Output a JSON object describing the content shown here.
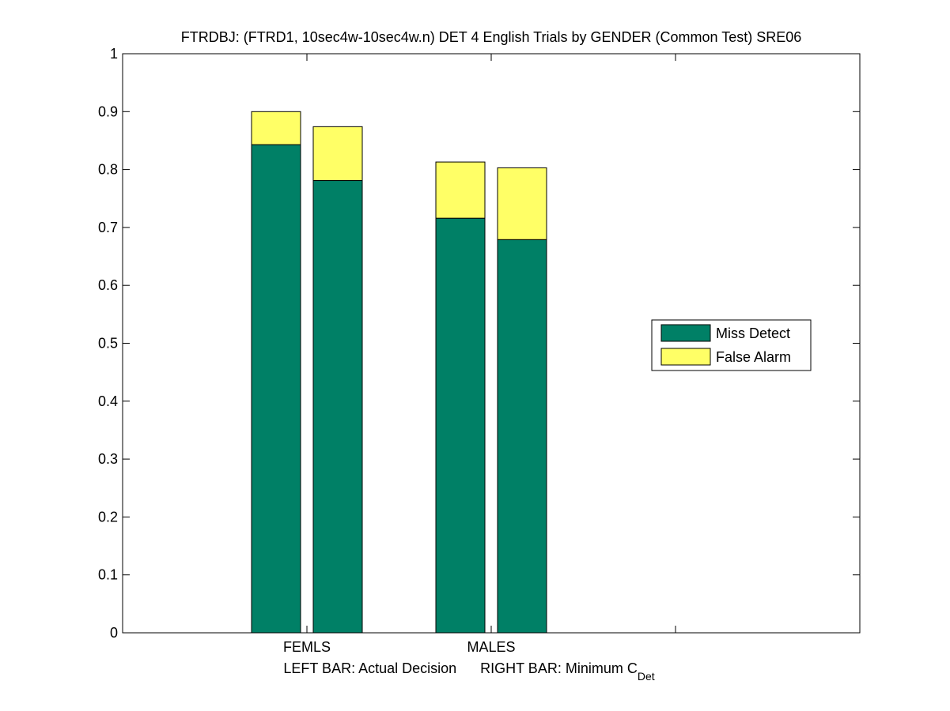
{
  "chart_data": {
    "type": "bar",
    "stacked": true,
    "title": "FTRDBJ: (FTRD1, 10sec4w-10sec4w.n) DET 4 English Trials by GENDER (Common Test) SRE06",
    "xlabel": {
      "left_part": "LEFT BAR: Actual Decision",
      "right_part": "RIGHT BAR: Minimum C",
      "subscript": "Det"
    },
    "ylabel": "",
    "ylim": [
      0,
      1
    ],
    "yticks": [
      "0",
      "0.1",
      "0.2",
      "0.3",
      "0.4",
      "0.5",
      "0.6",
      "0.7",
      "0.8",
      "0.9",
      "1"
    ],
    "xlim": [
      0,
      4
    ],
    "xticks": [
      1,
      2,
      3
    ],
    "groups": [
      {
        "label": "FEMLS",
        "bars": [
          {
            "role": "actual",
            "miss_detect": 0.843,
            "false_alarm": 0.057
          },
          {
            "role": "minimum",
            "miss_detect": 0.781,
            "false_alarm": 0.093
          }
        ]
      },
      {
        "label": "MALES",
        "bars": [
          {
            "role": "actual",
            "miss_detect": 0.716,
            "false_alarm": 0.097
          },
          {
            "role": "minimum",
            "miss_detect": 0.679,
            "false_alarm": 0.124
          }
        ]
      }
    ],
    "series": [
      {
        "name": "Miss Detect",
        "color": "#008066"
      },
      {
        "name": "False Alarm",
        "color": "#ffff66"
      }
    ],
    "legend": {
      "placement": "right-center"
    },
    "grid": false
  }
}
